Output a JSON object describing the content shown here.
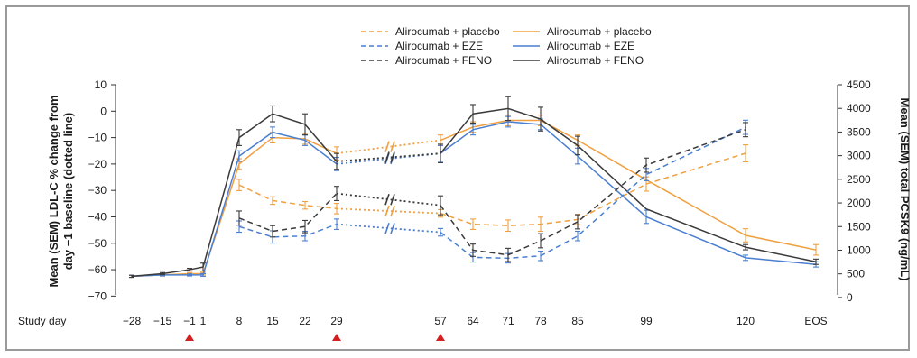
{
  "chart_data": {
    "type": "line",
    "ylabel_left": "Mean (SEM) LDL-C % change from day −1 baseline (dotted line)",
    "ylabel_right": "Mean (SEM) total PCSK9 (ng/mL)",
    "xlabel": "Study day",
    "ylim_left": [
      -75,
      10
    ],
    "ylim_right": [
      -250,
      4500
    ],
    "yticks_left": [
      10,
      0,
      -10,
      -20,
      -30,
      -40,
      -50,
      -60,
      -70
    ],
    "yticks_right": [
      4500,
      4000,
      3500,
      3000,
      2500,
      2000,
      1500,
      1000,
      500,
      0
    ],
    "x_ticks": [
      "−28",
      "−15",
      "−1",
      "1",
      "8",
      "15",
      "22",
      "29",
      "57",
      "64",
      "71",
      "78",
      "85",
      "99",
      "120",
      "EOS"
    ],
    "dosing_markers": [
      "−1",
      "29",
      "57"
    ],
    "grid": false,
    "legend_position": "top",
    "colors": {
      "placebo": "#f0a040",
      "eze": "#4a7fd0",
      "feno": "#3a3a3a",
      "marker": "#d42020",
      "axis": "#333333"
    },
    "legend": {
      "left": [
        {
          "label": "Alirocumab + placebo",
          "style": "dashed",
          "key": "placebo"
        },
        {
          "label": "Alirocumab + EZE",
          "style": "dashed",
          "key": "eze"
        },
        {
          "label": "Alirocumab + FENO",
          "style": "dashed",
          "key": "feno"
        }
      ],
      "right": [
        {
          "label": "Alirocumab + placebo",
          "style": "solid",
          "key": "placebo"
        },
        {
          "label": "Alirocumab + EZE",
          "style": "solid",
          "key": "eze"
        },
        {
          "label": "Alirocumab + FENO",
          "style": "solid",
          "key": "feno"
        }
      ]
    },
    "series_ldl": [
      {
        "key": "placebo",
        "points": [
          {
            "x": "−28",
            "y": -62.5,
            "e": 0.4
          },
          {
            "x": "−15",
            "y": -62.0,
            "e": 0.4
          },
          {
            "x": "−1",
            "y": -61.5,
            "e": 0.4
          },
          {
            "x": "1",
            "y": -61.5,
            "e": 0.5
          },
          {
            "x": "8",
            "y": -20.0,
            "e": 2.0
          },
          {
            "x": "15",
            "y": -10.0,
            "e": 2.0
          },
          {
            "x": "22",
            "y": -10.5,
            "e": 2.0
          },
          {
            "x": "29",
            "y": -16.0,
            "e": 2.5
          },
          {
            "x": "57",
            "y": -11.0,
            "e": 2.0
          },
          {
            "x": "64",
            "y": -6.0,
            "e": 2.0
          },
          {
            "x": "71",
            "y": -3.5,
            "e": 2.0
          },
          {
            "x": "78",
            "y": -3.5,
            "e": 2.0
          },
          {
            "x": "85",
            "y": -11.0,
            "e": 2.0
          }
        ]
      },
      {
        "key": "eze",
        "points": [
          {
            "x": "−28",
            "y": -62.5,
            "e": 0.4
          },
          {
            "x": "−15",
            "y": -62.0,
            "e": 0.4
          },
          {
            "x": "−1",
            "y": -62.0,
            "e": 0.4
          },
          {
            "x": "1",
            "y": -62.0,
            "e": 0.5
          },
          {
            "x": "8",
            "y": -17.0,
            "e": 2.0
          },
          {
            "x": "15",
            "y": -8.0,
            "e": 2.0
          },
          {
            "x": "22",
            "y": -11.0,
            "e": 2.0
          },
          {
            "x": "29",
            "y": -20.0,
            "e": 2.5
          },
          {
            "x": "57",
            "y": -16.0,
            "e": 3.0
          },
          {
            "x": "64",
            "y": -7.0,
            "e": 2.0
          },
          {
            "x": "71",
            "y": -4.0,
            "e": 2.0
          },
          {
            "x": "78",
            "y": -5.0,
            "e": 2.0
          },
          {
            "x": "85",
            "y": -17.0,
            "e": 3.0
          }
        ]
      },
      {
        "key": "feno",
        "points": [
          {
            "x": "−28",
            "y": -62.5,
            "e": 0.4
          },
          {
            "x": "−15",
            "y": -61.5,
            "e": 0.4
          },
          {
            "x": "−1",
            "y": -60.0,
            "e": 0.5
          },
          {
            "x": "1",
            "y": -59.0,
            "e": 1.5
          },
          {
            "x": "8",
            "y": -10.0,
            "e": 3.0
          },
          {
            "x": "15",
            "y": -1.0,
            "e": 3.0
          },
          {
            "x": "22",
            "y": -5.0,
            "e": 4.0
          },
          {
            "x": "29",
            "y": -19.0,
            "e": 3.0
          },
          {
            "x": "57",
            "y": -16.0,
            "e": 3.5
          },
          {
            "x": "64",
            "y": -1.0,
            "e": 3.5
          },
          {
            "x": "71",
            "y": 1.0,
            "e": 4.5
          },
          {
            "x": "78",
            "y": -3.0,
            "e": 4.5
          },
          {
            "x": "85",
            "y": -13.0,
            "e": 3.5
          }
        ]
      }
    ],
    "series_ldl_tail": [
      {
        "key": "placebo",
        "points": [
          {
            "x": "99",
            "y": -26.0
          },
          {
            "x": "120",
            "y": -47.0,
            "e": 2.5
          },
          {
            "x": "EOS",
            "y": -52.5,
            "e": 2.0
          }
        ]
      },
      {
        "key": "eze",
        "points": [
          {
            "x": "99",
            "y": -40.0,
            "e": 2.5
          },
          {
            "x": "120",
            "y": -55.5,
            "e": 1.0
          },
          {
            "x": "EOS",
            "y": -58.0,
            "e": 1.0
          }
        ]
      },
      {
        "key": "feno",
        "points": [
          {
            "x": "99",
            "y": -37.0
          },
          {
            "x": "120",
            "y": -51.5,
            "e": 1.0
          },
          {
            "x": "EOS",
            "y": -57.0,
            "e": 1.0
          }
        ]
      }
    ],
    "series_pcsk9": [
      {
        "key": "placebo",
        "points": [
          {
            "x": "8",
            "y": 2380,
            "e": 120
          },
          {
            "x": "15",
            "y": 2050,
            "e": 80
          },
          {
            "x": "22",
            "y": 1950,
            "e": 80
          },
          {
            "x": "29",
            "y": 1880,
            "e": 110
          },
          {
            "x": "57",
            "y": 1780,
            "e": 80
          },
          {
            "x": "64",
            "y": 1550,
            "e": 110
          },
          {
            "x": "71",
            "y": 1520,
            "e": 120
          },
          {
            "x": "78",
            "y": 1550,
            "e": 150
          },
          {
            "x": "85",
            "y": 1650,
            "e": 110
          },
          {
            "x": "99",
            "y": 2400,
            "e": 150
          },
          {
            "x": "120",
            "y": 3050,
            "e": 180
          }
        ]
      },
      {
        "key": "eze",
        "points": [
          {
            "x": "8",
            "y": 1500,
            "e": 120
          },
          {
            "x": "15",
            "y": 1280,
            "e": 130
          },
          {
            "x": "22",
            "y": 1300,
            "e": 100
          },
          {
            "x": "29",
            "y": 1550,
            "e": 110
          },
          {
            "x": "57",
            "y": 1380,
            "e": 80
          },
          {
            "x": "64",
            "y": 850,
            "e": 100
          },
          {
            "x": "71",
            "y": 830,
            "e": 100
          },
          {
            "x": "78",
            "y": 880,
            "e": 100
          },
          {
            "x": "85",
            "y": 1300,
            "e": 100
          },
          {
            "x": "99",
            "y": 2600,
            "e": 130
          },
          {
            "x": "120",
            "y": 3600,
            "e": 150
          }
        ]
      },
      {
        "key": "feno",
        "points": [
          {
            "x": "8",
            "y": 1680,
            "e": 150
          },
          {
            "x": "15",
            "y": 1400,
            "e": 120
          },
          {
            "x": "22",
            "y": 1500,
            "e": 130
          },
          {
            "x": "29",
            "y": 2200,
            "e": 150
          },
          {
            "x": "57",
            "y": 1950,
            "e": 200
          },
          {
            "x": "64",
            "y": 1000,
            "e": 130
          },
          {
            "x": "71",
            "y": 900,
            "e": 140
          },
          {
            "x": "78",
            "y": 1200,
            "e": 150
          },
          {
            "x": "85",
            "y": 1600,
            "e": 150
          },
          {
            "x": "99",
            "y": 2800,
            "e": 150
          },
          {
            "x": "120",
            "y": 3550,
            "e": 150
          }
        ]
      }
    ]
  }
}
